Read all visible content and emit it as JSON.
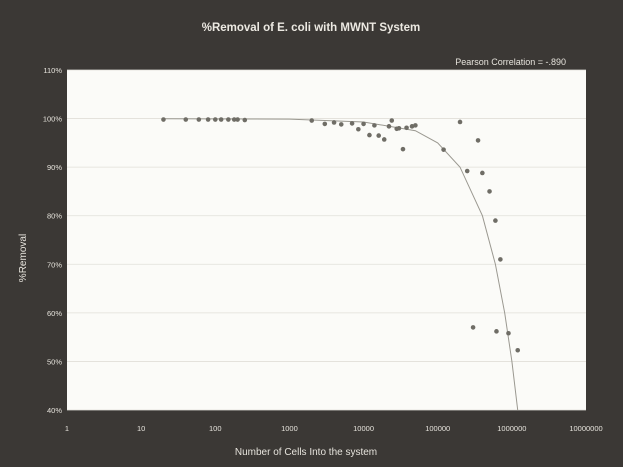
{
  "chart_data": {
    "type": "scatter",
    "title": "%Removal of E. coli with MWNT System",
    "annotation": "Pearson Correlation = -.890",
    "xlabel": "Number of Cells Into the system",
    "ylabel": "%Removal",
    "x_scale": "log",
    "xlim": [
      1,
      10000000
    ],
    "ylim": [
      40,
      110
    ],
    "x_ticks": [
      1,
      10,
      100,
      1000,
      10000,
      100000,
      1000000,
      10000000
    ],
    "x_tick_labels": [
      "1",
      "10",
      "100",
      "1000",
      "10000",
      "100000",
      "1000000",
      "10000000"
    ],
    "y_ticks": [
      40,
      50,
      60,
      70,
      80,
      90,
      100,
      110
    ],
    "y_tick_labels": [
      "40%",
      "50%",
      "60%",
      "70%",
      "80%",
      "90%",
      "100%",
      "110%"
    ],
    "grid": "horizontal",
    "legend": "none",
    "colors": {
      "background": "#3b3835",
      "plot_area": "#fbfbf8",
      "title_text": "#ece9e2",
      "axis_text": "#e6e3dc",
      "marker": "#6f6d66",
      "trend": "#9a9890",
      "grid": "#e0dfd9"
    },
    "series": [
      {
        "points": [
          [
            20,
            99.8
          ],
          [
            40,
            99.8
          ],
          [
            60,
            99.8
          ],
          [
            80,
            99.8
          ],
          [
            100,
            99.8
          ],
          [
            120,
            99.8
          ],
          [
            150,
            99.8
          ],
          [
            180,
            99.8
          ],
          [
            200,
            99.8
          ],
          [
            250,
            99.7
          ],
          [
            2000,
            99.6
          ],
          [
            3000,
            98.9
          ],
          [
            4000,
            99.2
          ],
          [
            5000,
            98.8
          ],
          [
            7000,
            99.0
          ],
          [
            8500,
            97.8
          ],
          [
            10000,
            98.9
          ],
          [
            12000,
            96.6
          ],
          [
            14000,
            98.6
          ],
          [
            16000,
            96.5
          ],
          [
            19000,
            95.7
          ],
          [
            22000,
            98.4
          ],
          [
            24000,
            99.6
          ],
          [
            28000,
            97.9
          ],
          [
            30000,
            98.0
          ],
          [
            34000,
            93.7
          ],
          [
            38000,
            98.1
          ],
          [
            45000,
            98.4
          ],
          [
            50000,
            98.6
          ],
          [
            120000,
            93.6
          ],
          [
            200000,
            99.3
          ],
          [
            250000,
            89.2
          ],
          [
            300000,
            57.0
          ],
          [
            350000,
            95.5
          ],
          [
            400000,
            88.8
          ],
          [
            500000,
            85.0
          ],
          [
            600000,
            79.0
          ],
          [
            620000,
            56.2
          ],
          [
            700000,
            71.0
          ],
          [
            900000,
            55.8
          ],
          [
            1200000,
            52.3
          ]
        ]
      }
    ],
    "trend_points": [
      [
        20,
        99.95
      ],
      [
        1000,
        99.9
      ],
      [
        10000,
        99.3
      ],
      [
        50000,
        97.5
      ],
      [
        100000,
        95.0
      ],
      [
        200000,
        90.0
      ],
      [
        400000,
        80.0
      ],
      [
        600000,
        70.0
      ],
      [
        800000,
        60.0
      ],
      [
        1000000,
        50.0
      ],
      [
        1200000,
        40.0
      ]
    ]
  }
}
